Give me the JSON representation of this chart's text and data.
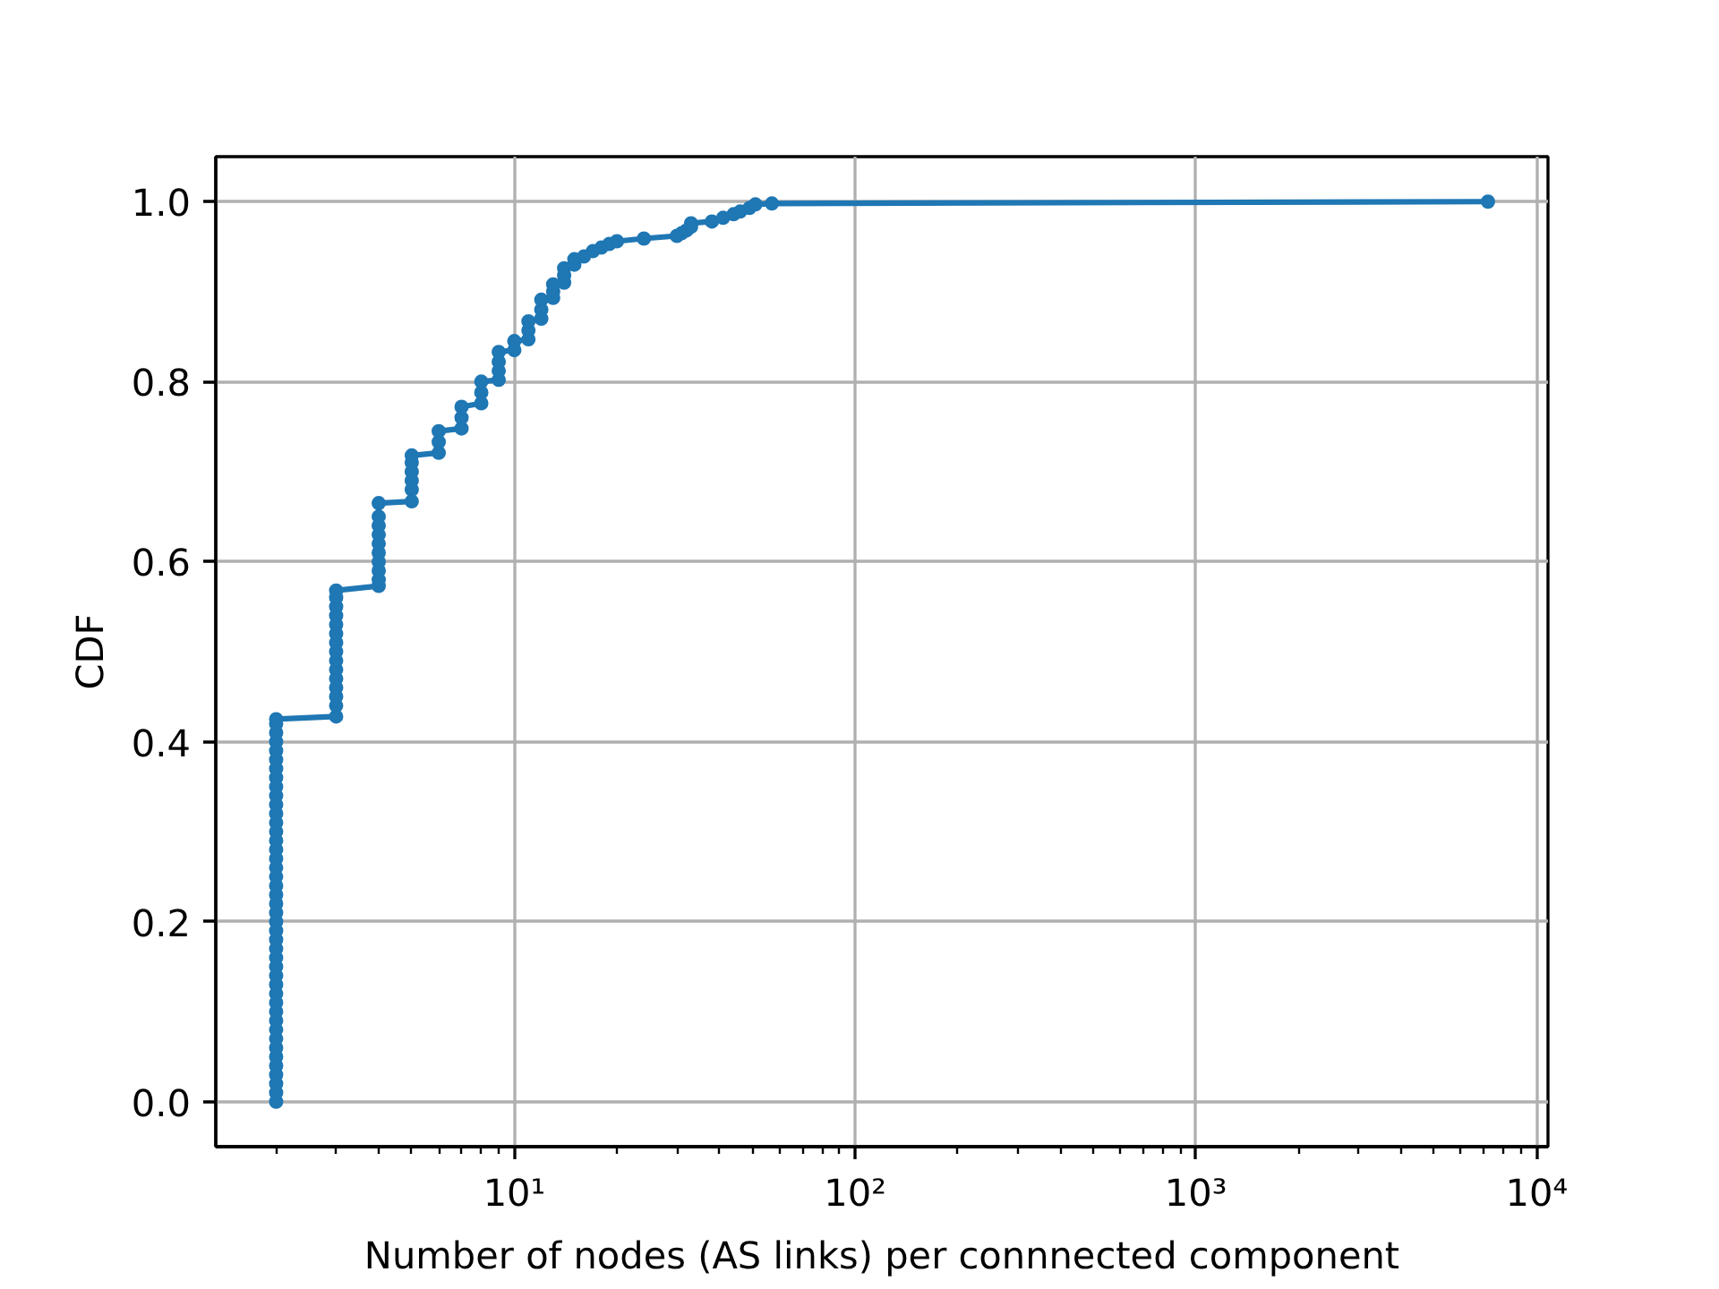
{
  "chart_data": {
    "type": "line",
    "xlabel": "Number of nodes (AS links) per connnected component",
    "ylabel": "CDF",
    "log": "x",
    "grid": true,
    "marker": "circle",
    "line_style": "solid",
    "xlim": [
      1.33,
      10800
    ],
    "ylim": [
      -0.05,
      1.05
    ],
    "xticks": [
      {
        "value": 10,
        "label": "10¹"
      },
      {
        "value": 100,
        "label": "10²"
      },
      {
        "value": 1000,
        "label": "10³"
      },
      {
        "value": 10000,
        "label": "10⁴"
      }
    ],
    "yticks": [
      {
        "value": 0,
        "label": "0.0"
      },
      0.2,
      0.4,
      0.6,
      0.8,
      {
        "value": 1,
        "label": "1.0"
      }
    ],
    "series": [
      {
        "color": "#1f77b4",
        "x": [
          2,
          2,
          2,
          2,
          2,
          2,
          2,
          2,
          2,
          2,
          2,
          2,
          2,
          2,
          2,
          2,
          2,
          2,
          2,
          2,
          2,
          2,
          2,
          2,
          2,
          2,
          2,
          2,
          2,
          2,
          2,
          2,
          2,
          2,
          2,
          2,
          2,
          2,
          2,
          2,
          2,
          2,
          2,
          2,
          3,
          3,
          3,
          3,
          3,
          3,
          3,
          3,
          3,
          3,
          3,
          3,
          3,
          3,
          3,
          4,
          4,
          4,
          4,
          4,
          4,
          4,
          4,
          4,
          4,
          5,
          5,
          5,
          5,
          5,
          5,
          6,
          6,
          6,
          7,
          7,
          7,
          8,
          8,
          8,
          9,
          9,
          9,
          9,
          10,
          10,
          11,
          11,
          11,
          12,
          12,
          12,
          13,
          13,
          13,
          14,
          14,
          14,
          15,
          15,
          16,
          17,
          18,
          19,
          20,
          24,
          30,
          31,
          32,
          33,
          33,
          38,
          41,
          44,
          46,
          49,
          51,
          57,
          7200
        ],
        "values": [
          0,
          0.01,
          0.02,
          0.03,
          0.04,
          0.05,
          0.06,
          0.07,
          0.08,
          0.09,
          0.1,
          0.11,
          0.12,
          0.13,
          0.14,
          0.15,
          0.16,
          0.17,
          0.18,
          0.19,
          0.2,
          0.21,
          0.22,
          0.23,
          0.24,
          0.25,
          0.26,
          0.27,
          0.28,
          0.29,
          0.3,
          0.31,
          0.32,
          0.33,
          0.34,
          0.35,
          0.36,
          0.37,
          0.38,
          0.39,
          0.4,
          0.41,
          0.42,
          0.425,
          0.428,
          0.44,
          0.45,
          0.46,
          0.47,
          0.48,
          0.49,
          0.5,
          0.51,
          0.52,
          0.53,
          0.54,
          0.55,
          0.56,
          0.568,
          0.573,
          0.58,
          0.59,
          0.6,
          0.61,
          0.62,
          0.63,
          0.64,
          0.65,
          0.665,
          0.667,
          0.68,
          0.69,
          0.7,
          0.71,
          0.718,
          0.721,
          0.733,
          0.745,
          0.748,
          0.76,
          0.772,
          0.776,
          0.788,
          0.8,
          0.802,
          0.812,
          0.822,
          0.833,
          0.835,
          0.845,
          0.847,
          0.857,
          0.867,
          0.87,
          0.88,
          0.891,
          0.893,
          0.9,
          0.908,
          0.91,
          0.918,
          0.926,
          0.93,
          0.936,
          0.939,
          0.945,
          0.949,
          0.953,
          0.956,
          0.959,
          0.962,
          0.965,
          0.968,
          0.972,
          0.976,
          0.978,
          0.982,
          0.986,
          0.989,
          0.993,
          0.997,
          0.998,
          1.0
        ]
      }
    ]
  }
}
